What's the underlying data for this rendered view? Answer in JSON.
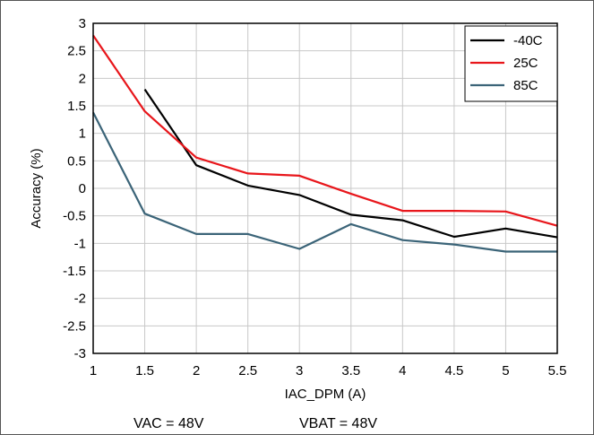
{
  "chart_data": {
    "type": "line",
    "xlabel": "IAC_DPM (A)",
    "ylabel": "Accuracy (%)",
    "xlim": [
      1,
      5.5
    ],
    "ylim": [
      -3,
      3
    ],
    "x_ticks": [
      "1",
      "1.5",
      "2",
      "2.5",
      "3",
      "3.5",
      "4",
      "4.5",
      "5",
      "5.5"
    ],
    "y_ticks": [
      "3",
      "2.5",
      "2",
      "1.5",
      "1",
      "0.5",
      "0",
      "-0.5",
      "-1",
      "-1.5",
      "-2",
      "-2.5",
      "-3"
    ],
    "grid": true,
    "legend_position": "top-right",
    "series": [
      {
        "name": "-40C",
        "color": "#000000",
        "x": [
          1.5,
          2,
          2.5,
          3,
          3.5,
          4,
          4.5,
          5,
          5.5
        ],
        "y": [
          1.8,
          0.42,
          0.05,
          -0.12,
          -0.48,
          -0.58,
          -0.88,
          -0.73,
          -0.89
        ]
      },
      {
        "name": "25C",
        "color": "#e8161b",
        "x": [
          1,
          1.5,
          2,
          2.5,
          3,
          3.5,
          4,
          4.5,
          5,
          5.5
        ],
        "y": [
          2.78,
          1.4,
          0.56,
          0.27,
          0.23,
          -0.1,
          -0.41,
          -0.41,
          -0.42,
          -0.68
        ]
      },
      {
        "name": "85C",
        "color": "#3b6478",
        "x": [
          1,
          1.5,
          2,
          2.5,
          3,
          3.5,
          4,
          4.5,
          5,
          5.5
        ],
        "y": [
          1.38,
          -0.46,
          -0.83,
          -0.83,
          -1.1,
          -0.65,
          -0.94,
          -1.02,
          -1.15,
          -1.15
        ]
      }
    ],
    "annotations": [
      "VAC = 48V",
      "VBAT = 48V"
    ]
  }
}
